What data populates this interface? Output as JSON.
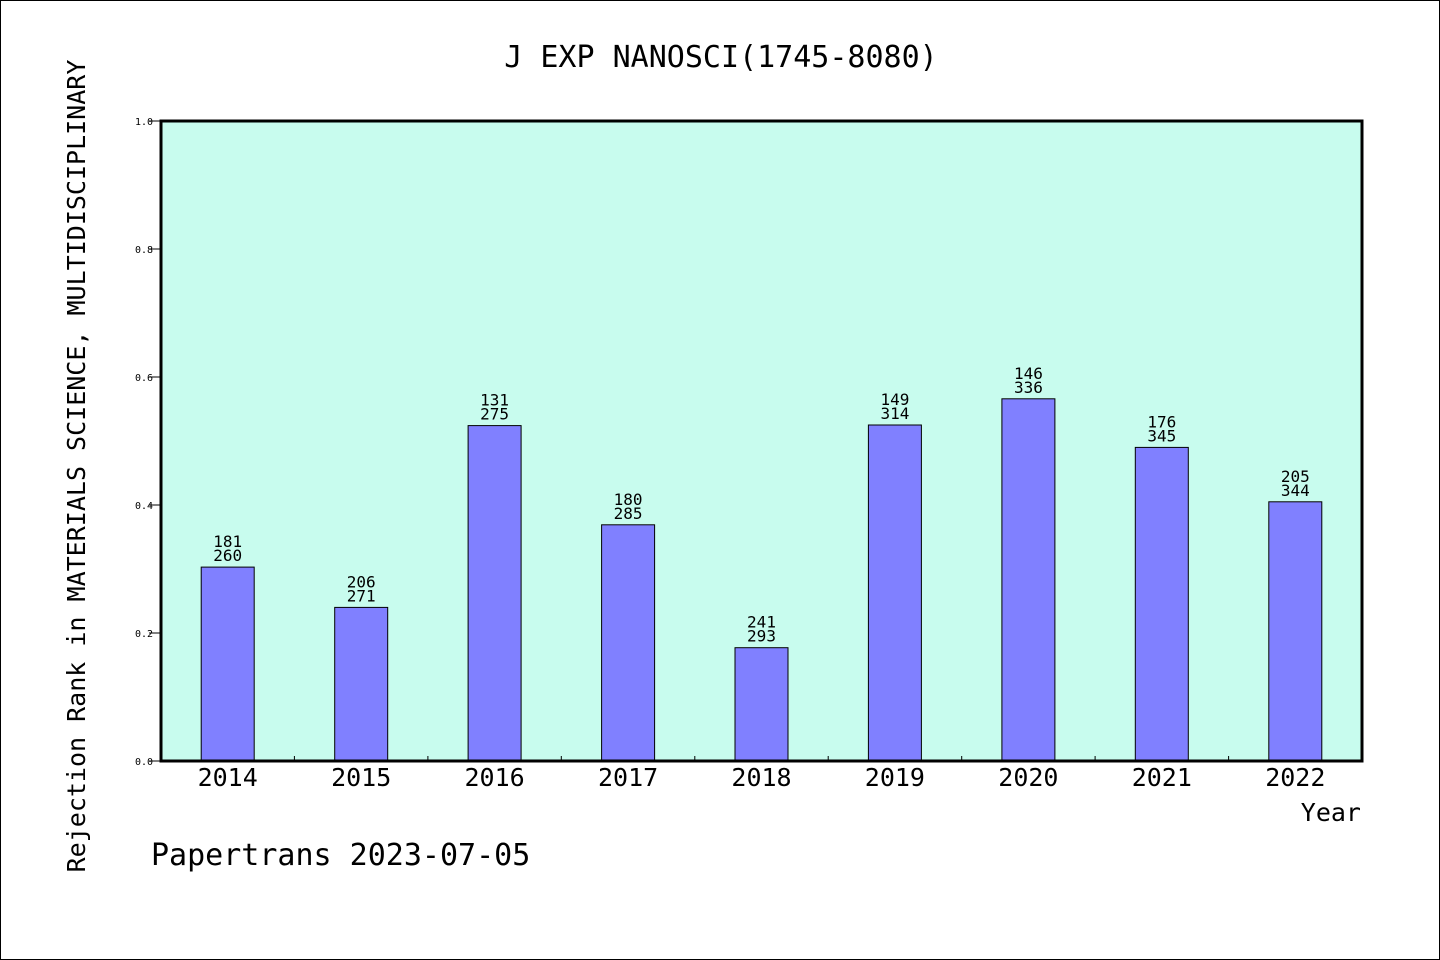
{
  "chart_data": {
    "type": "bar",
    "title": "J EXP NANOSCI(1745-8080)",
    "xlabel": "Year",
    "ylabel": "Rejection Rank in MATERIALS SCIENCE, MULTIDISCIPLINARY",
    "categories": [
      "2014",
      "2015",
      "2016",
      "2017",
      "2018",
      "2019",
      "2020",
      "2021",
      "2022"
    ],
    "values": [
      0.303,
      0.24,
      0.524,
      0.369,
      0.177,
      0.525,
      0.566,
      0.49,
      0.405
    ],
    "labels_top": [
      "181",
      "206",
      "131",
      "180",
      "241",
      "149",
      "146",
      "176",
      "205"
    ],
    "labels_bottom": [
      "260",
      "271",
      "275",
      "285",
      "293",
      "314",
      "336",
      "345",
      "344"
    ],
    "ylim": [
      0,
      1.0
    ],
    "yticks": [
      "0.0",
      "0.2",
      "0.4",
      "0.6",
      "0.8",
      "1.0"
    ],
    "grid": false,
    "colors": {
      "plot_bg": "#c8fcee",
      "bar": "#8080ff",
      "bar_edge": "#000000"
    }
  },
  "footer": "Papertrans 2023-07-05"
}
